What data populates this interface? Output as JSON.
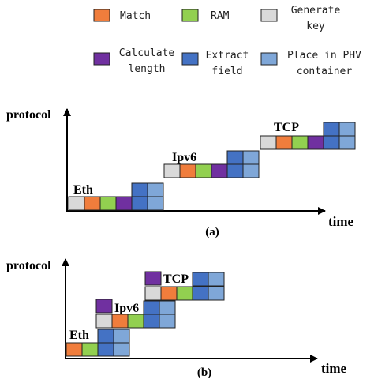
{
  "colors": {
    "match": "#F07D3C",
    "ram": "#92D050",
    "generate_key": "#D9D9D9",
    "calculate_length": "#7030A0",
    "extract_field": "#4472C4",
    "place_phv": "#7FA7D8",
    "border": "#222222",
    "axis": "#000000"
  },
  "legend": {
    "match": "Match",
    "ram": "RAM",
    "generate_key_line1": "Generate",
    "generate_key_line2": "key",
    "calculate_length_line1": "Calculate",
    "calculate_length_line2": "length",
    "extract_field_line1": "Extract",
    "extract_field_line2": "field",
    "place_phv_line1": "Place in PHV",
    "place_phv_line2": "container"
  },
  "diagram_a": {
    "y_axis_label": "protocol",
    "x_axis_label": "time",
    "caption": "(a)",
    "eth_label": "Eth",
    "ipv6_label": "Ipv6",
    "tcp_label": "TCP"
  },
  "diagram_b": {
    "y_axis_label": "protocol",
    "x_axis_label": "time",
    "caption": "(b)",
    "eth_label": "Eth",
    "ipv6_label": "Ipv6",
    "tcp_label": "TCP"
  }
}
